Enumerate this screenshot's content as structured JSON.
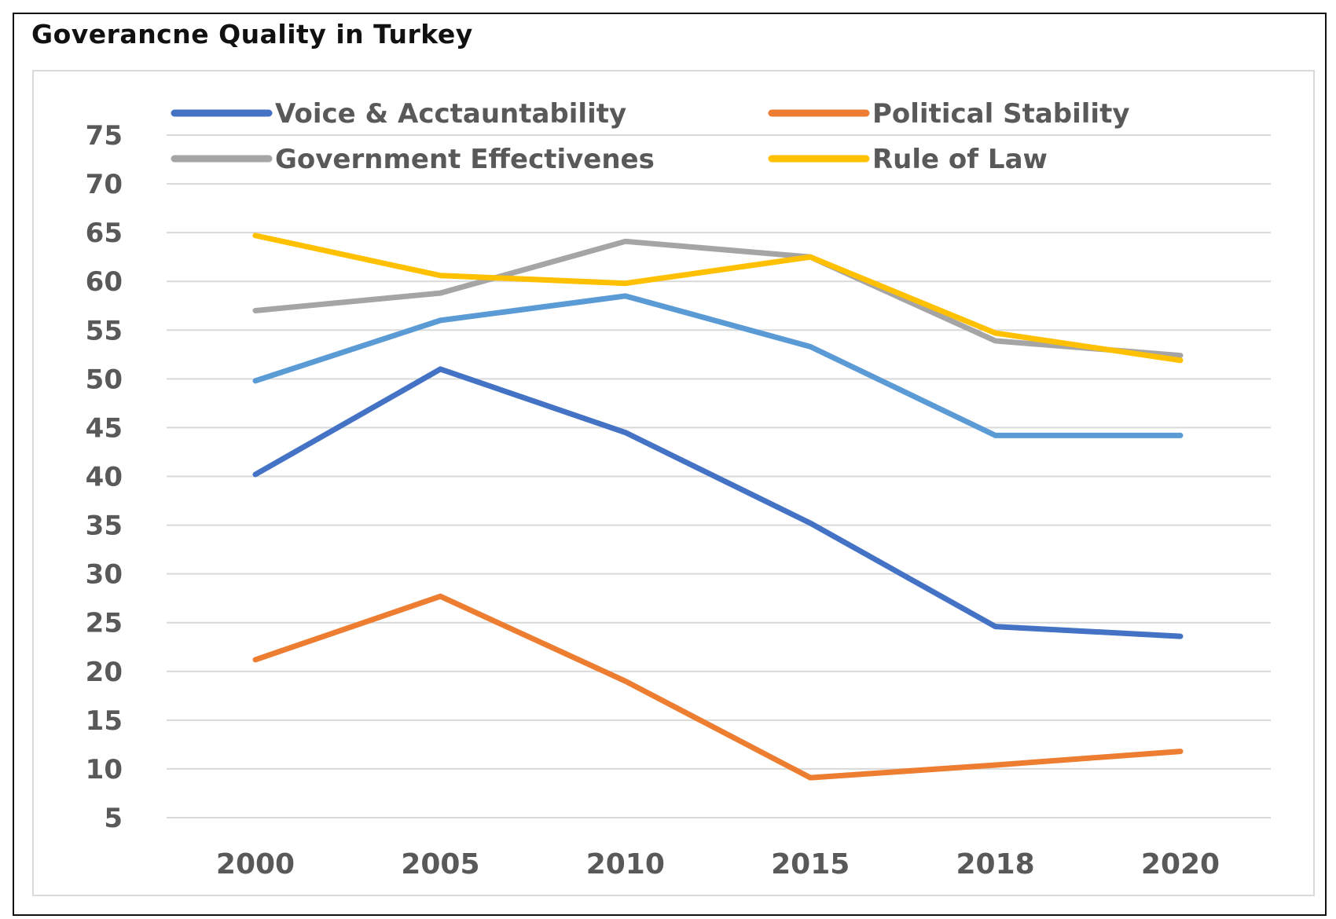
{
  "chart_data": {
    "type": "line",
    "title": "Goverancne Quality in Turkey",
    "xlabel": "",
    "ylabel": "",
    "categories": [
      "2000",
      "2005",
      "2010",
      "2015",
      "2018",
      "2020"
    ],
    "y_ticks": [
      5,
      10,
      15,
      20,
      25,
      30,
      35,
      40,
      45,
      50,
      55,
      60,
      65,
      70,
      75
    ],
    "ylim": [
      5,
      75
    ],
    "grid": true,
    "legend_position": "top",
    "series": [
      {
        "name": "Voice & Acctauntability",
        "color": "#4472C4",
        "in_legend": true,
        "values": [
          40.2,
          51,
          44.5,
          35.2,
          24.6,
          23.6
        ]
      },
      {
        "name": "Political Stability",
        "color": "#ED7D31",
        "in_legend": true,
        "values": [
          21.2,
          27.7,
          19,
          9.1,
          10.4,
          11.8
        ]
      },
      {
        "name": "Government Effectivenes",
        "color": "#A5A5A5",
        "in_legend": true,
        "values": [
          57,
          58.8,
          64.1,
          62.5,
          53.9,
          52.4
        ]
      },
      {
        "name": "Rule of Law",
        "color": "#FFC000",
        "in_legend": true,
        "values": [
          64.7,
          60.6,
          59.8,
          62.5,
          54.7,
          51.9
        ]
      },
      {
        "name": "",
        "color": "#5B9BD5",
        "in_legend": false,
        "values": [
          49.8,
          56,
          58.5,
          53.3,
          44.2,
          44.2
        ]
      }
    ]
  }
}
